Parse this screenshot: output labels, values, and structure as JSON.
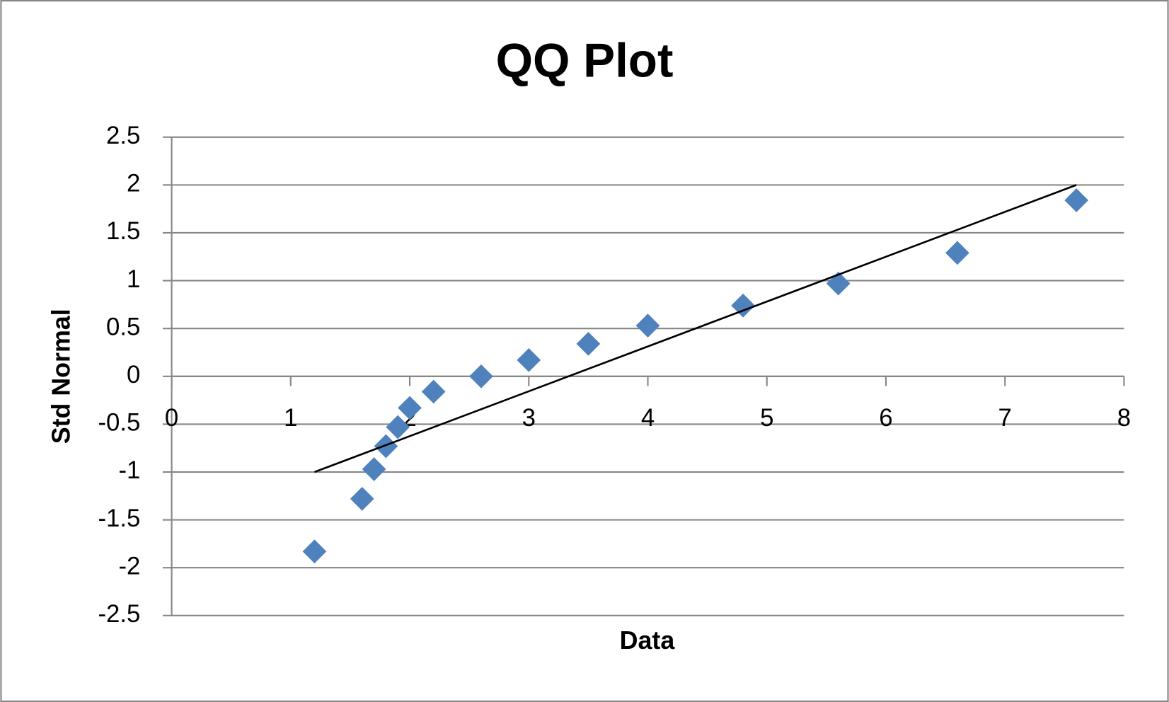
{
  "chart_data": {
    "type": "scatter",
    "title": "QQ Plot",
    "x_label": "Data",
    "y_label": "Std Normal",
    "points": {
      "color": "#4f81bd",
      "x": [
        1.2,
        1.6,
        1.7,
        1.8,
        1.9,
        2.0,
        2.2,
        2.6,
        3.0,
        3.5,
        4.0,
        4.8,
        5.6,
        6.6,
        7.6
      ],
      "y": [
        -1.83,
        -1.28,
        -0.97,
        -0.73,
        -0.53,
        -0.33,
        -0.16,
        0,
        0.17,
        0.34,
        0.53,
        0.74,
        0.97,
        1.29,
        1.84
      ]
    },
    "fit_line": {
      "color": "#000000",
      "x": [
        1.2,
        7.6
      ],
      "y": [
        -1,
        2
      ]
    },
    "xlim": [
      0,
      8
    ],
    "xticks": [
      0,
      1,
      2,
      3,
      4,
      5,
      6,
      7,
      8
    ],
    "ylim": [
      -2.5,
      2.5
    ],
    "yticks": [
      -2.5,
      -2,
      -1.5,
      -1,
      -0.5,
      0,
      0.5,
      1,
      1.5,
      2,
      2.5
    ],
    "grid": true
  }
}
